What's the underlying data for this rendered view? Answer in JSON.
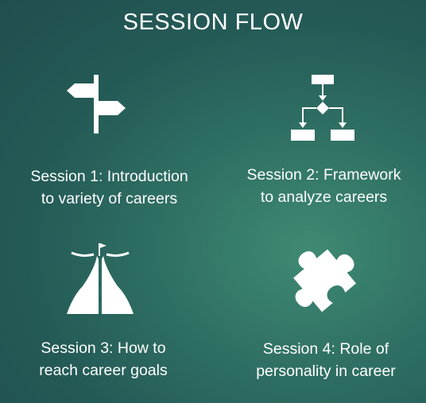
{
  "slide": {
    "title": "SESSION FLOW",
    "background": {
      "inner": "#3f8a74",
      "mid": "#2f6f63",
      "outer": "#1f4e4e"
    },
    "text_color": "#ffffff"
  },
  "sessions": [
    {
      "icon": "signpost-icon",
      "line1": "Session 1: Introduction",
      "line2": "to variety of careers"
    },
    {
      "icon": "flowchart-icon",
      "line1": "Session 2: Framework",
      "line2": "to analyze careers"
    },
    {
      "icon": "road-goal-icon",
      "line1": "Session 3: How to",
      "line2": "reach career goals"
    },
    {
      "icon": "puzzle-piece-icon",
      "line1": "Session 4: Role of",
      "line2": "personality in career"
    }
  ]
}
